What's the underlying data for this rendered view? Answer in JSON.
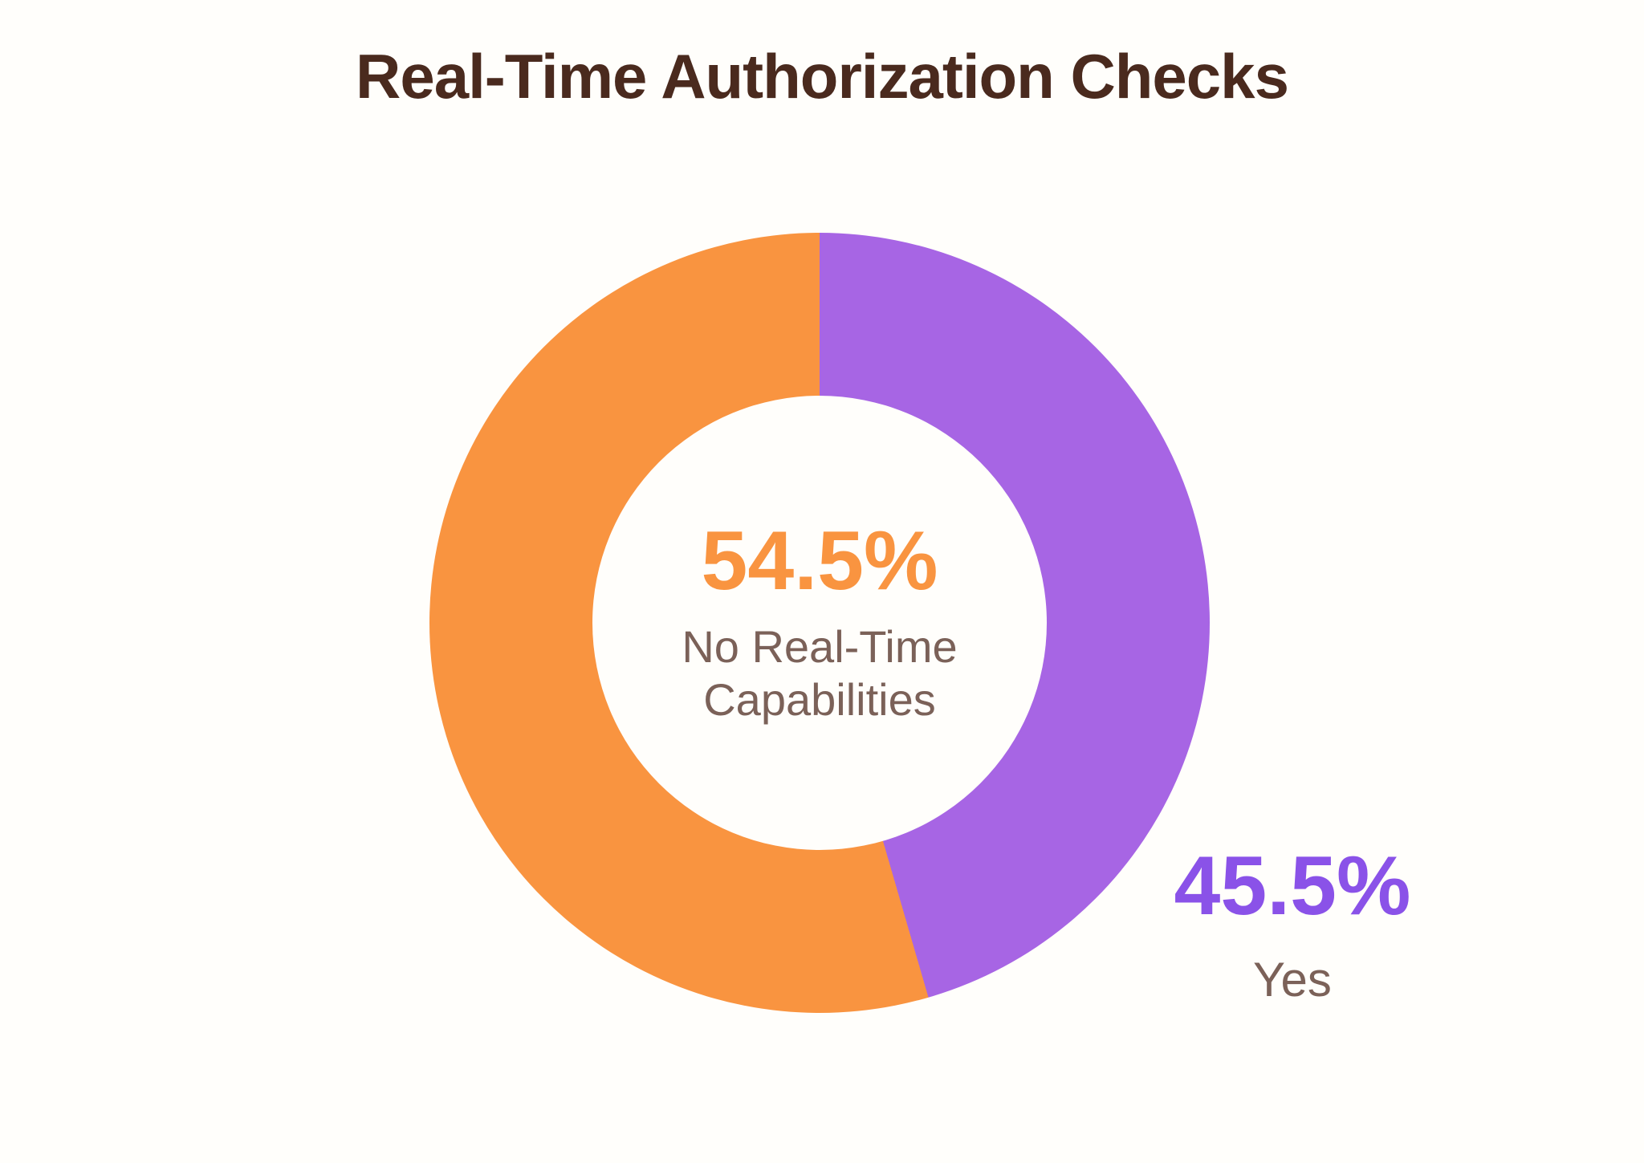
{
  "title": "Real-Time Authorization Checks",
  "colors": {
    "background": "#FFFEFB",
    "orange": "#F99440",
    "purple": "#A765E4",
    "purple_text": "#8A52E8",
    "brown": "#4A2A1E",
    "label_brown": "#7B6158"
  },
  "chart_data": {
    "type": "pie",
    "donut": true,
    "title": "Real-Time Authorization Checks",
    "start_angle_deg": 0,
    "direction": "clockwise",
    "slices": [
      {
        "label": "Yes",
        "value": 45.5,
        "percent_label": "45.5%",
        "color": "#A765E4"
      },
      {
        "label": "No Real-Time Capabilities",
        "value": 54.5,
        "percent_label": "54.5%",
        "color": "#F99440"
      }
    ],
    "legend_position": "labels-on-chart"
  },
  "center_label": {
    "percent": "54.5%",
    "line1": "No Real-Time",
    "line2": "Capabilities"
  },
  "side_label": {
    "percent": "45.5%",
    "label": "Yes"
  }
}
